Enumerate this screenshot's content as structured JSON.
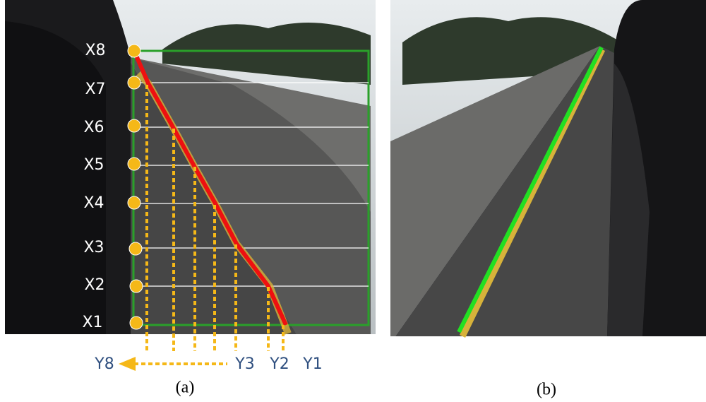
{
  "panel_a": {
    "x_labels": [
      "X8",
      "X7",
      "X6",
      "X5",
      "X4",
      "X3",
      "X2",
      "X1"
    ],
    "y_labels": [
      "Y8",
      "Y3",
      "Y2",
      "Y1"
    ],
    "caption": "(a)"
  },
  "panel_b": {
    "caption": "(b)"
  }
}
